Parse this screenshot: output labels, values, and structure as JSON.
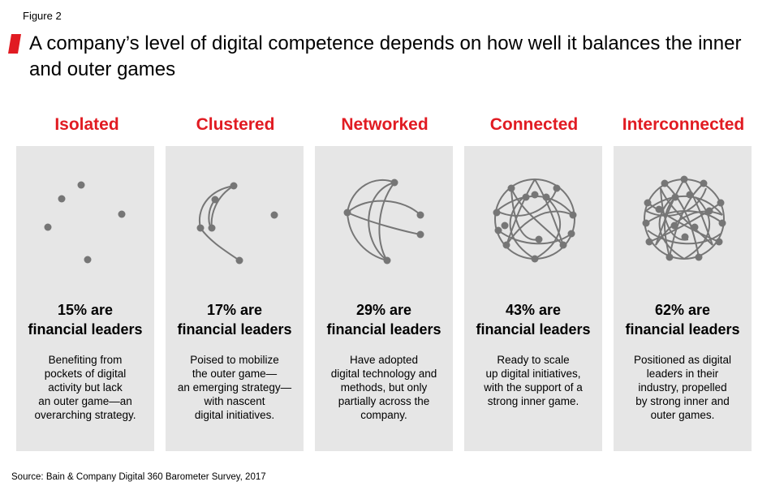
{
  "figure_label": "Figure 2",
  "title": "A company’s level of digital competence depends on how well it balances the inner and outer games",
  "accent_color": "#e11b22",
  "panel_color": "#e6e6e6",
  "columns": [
    {
      "name": "Isolated",
      "stat_line1": "15% are",
      "stat_line2": "financial leaders",
      "description": "Benefiting from\npockets of digital\nactivity but lack\nan outer game—an\noverarching strategy."
    },
    {
      "name": "Clustered",
      "stat_line1": "17% are",
      "stat_line2": "financial leaders",
      "description": "Poised to mobilize\nthe outer game—\nan emerging strategy—\nwith nascent\ndigital initiatives."
    },
    {
      "name": "Networked",
      "stat_line1": "29% are",
      "stat_line2": "financial leaders",
      "description": "Have adopted\ndigital technology and\nmethods, but only\npartially across the\ncompany."
    },
    {
      "name": "Connected",
      "stat_line1": "43% are",
      "stat_line2": "financial leaders",
      "description": "Ready to scale\nup digital initiatives,\nwith the support of a\nstrong inner game."
    },
    {
      "name": "Interconnected",
      "stat_line1": "62% are",
      "stat_line2": "financial leaders",
      "description": "Positioned as digital\nleaders in their\nindustry, propelled\nby strong inner and\nouter games."
    }
  ],
  "source": "Source: Bain & Company Digital 360 Barometer Survey, 2017"
}
